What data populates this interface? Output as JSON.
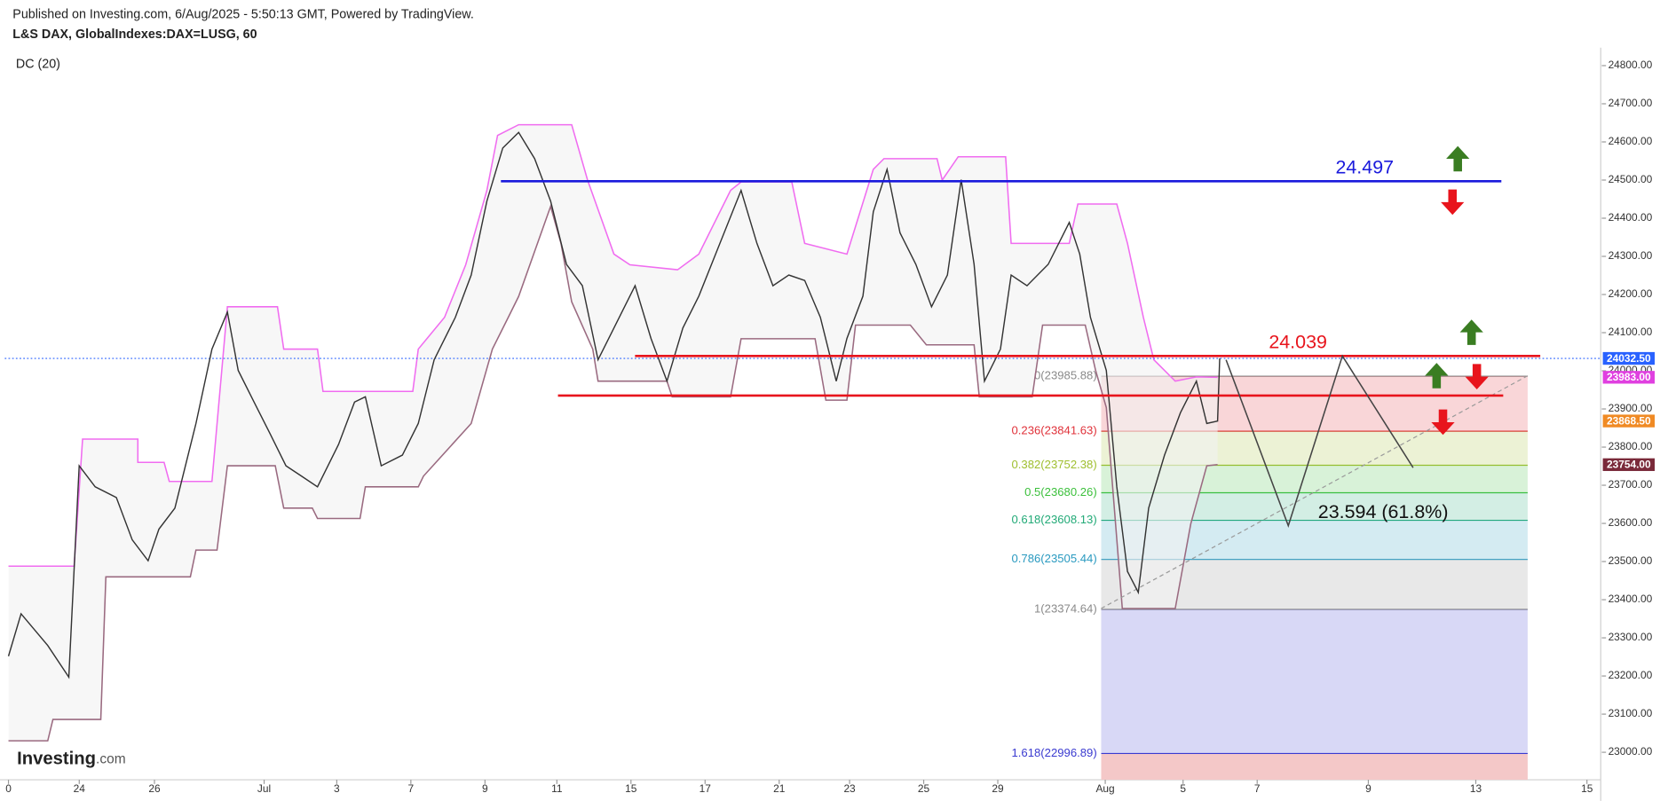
{
  "header": {
    "published": "Published on Investing.com, 6/Aug/2025 - 5:50:13 GMT, Powered by TradingView.",
    "symbol": "L&S DAX, GlobalIndexes:DAX=LUSG, 60",
    "indicator": "DC (20)",
    "logo": "Investing",
    "logo_suffix": ".com"
  },
  "chart_data": {
    "type": "line",
    "xlim": [
      -0.1,
      43
    ],
    "ylim": [
      22928,
      24847
    ],
    "xticks": [
      0,
      {
        "value": 1.91,
        "label": "24"
      },
      {
        "value": 3.94,
        "label": "26"
      },
      {
        "value": 6.9,
        "label": "Jul"
      },
      {
        "value": 8.86,
        "label": "3"
      },
      {
        "value": 10.86,
        "label": "7"
      },
      {
        "value": 12.86,
        "label": "9"
      },
      {
        "value": 14.8,
        "label": "11"
      },
      {
        "value": 16.8,
        "label": "15"
      },
      {
        "value": 18.8,
        "label": "17"
      },
      {
        "value": 20.8,
        "label": "21"
      },
      {
        "value": 22.7,
        "label": "23"
      },
      {
        "value": 24.7,
        "label": "25"
      },
      {
        "value": 26.7,
        "label": "29"
      },
      {
        "value": 29.6,
        "label": "Aug"
      },
      {
        "value": 31.7,
        "label": "5"
      },
      {
        "value": 33.7,
        "label": "7"
      },
      {
        "value": 36.7,
        "label": "9"
      },
      {
        "value": 39.6,
        "label": "13"
      },
      {
        "value": 42.6,
        "label": "15"
      }
    ],
    "yticks": [
      {
        "value": 23000,
        "label": "23000.00"
      },
      {
        "value": 23100,
        "label": "23100.00"
      },
      {
        "value": 23200,
        "label": "23200.00"
      },
      {
        "value": 23300,
        "label": "23300.00"
      },
      {
        "value": 23400,
        "label": "23400.00"
      },
      {
        "value": 23500,
        "label": "23500.00"
      },
      {
        "value": 23600,
        "label": "23600.00"
      },
      {
        "value": 23700,
        "label": "23700.00"
      },
      {
        "value": 23800,
        "label": "23800.00"
      },
      {
        "value": 23900,
        "label": "23900.00"
      },
      {
        "value": 24000,
        "label": "24000.00"
      },
      {
        "value": 24100,
        "label": "24100.00"
      },
      {
        "value": 24200,
        "label": "24200.00"
      },
      {
        "value": 24300,
        "label": "24300.00"
      },
      {
        "value": 24400,
        "label": "24400.00"
      },
      {
        "value": 24500,
        "label": "24500.00"
      },
      {
        "value": 24600,
        "label": "24600.00"
      },
      {
        "value": 24700,
        "label": "24700.00"
      },
      {
        "value": 24800,
        "label": "24800.00"
      }
    ],
    "price": {
      "color": "#333333",
      "x": [
        0,
        0.34,
        1.06,
        1.63,
        1.91,
        2.34,
        2.91,
        3.34,
        3.77,
        4.06,
        4.49,
        5.06,
        5.49,
        5.91,
        6.2,
        6.63,
        7.06,
        7.49,
        7.91,
        8.34,
        8.91,
        9.34,
        9.63,
        10.06,
        10.63,
        11.06,
        11.49,
        12.06,
        12.49,
        12.91,
        13.34,
        13.77,
        14.2,
        14.63,
        15.06,
        15.49,
        15.91,
        16.34,
        16.91,
        17.34,
        17.77,
        18.2,
        18.63,
        19.2,
        19.77,
        20.2,
        20.63,
        21.06,
        21.49,
        21.91,
        22.34,
        22.63,
        23.06,
        23.34,
        23.71,
        24.06,
        24.49,
        24.91,
        25.34,
        25.71,
        26.06,
        26.34,
        26.77,
        27.06,
        27.49,
        28.06,
        28.63,
        28.91,
        29.2,
        29.63,
        29.91,
        30.2,
        30.49,
        30.77,
        31.2,
        31.63,
        32.06,
        32.34,
        32.63,
        32.69
      ],
      "values": [
        23252,
        23363,
        23280,
        23197,
        23751,
        23696,
        23668,
        23557,
        23502,
        23585,
        23640,
        23862,
        24057,
        24154,
        24001,
        23918,
        23835,
        23751,
        23724,
        23696,
        23807,
        23918,
        23932,
        23751,
        23779,
        23862,
        24029,
        24140,
        24251,
        24445,
        24584,
        24625,
        24556,
        24445,
        24279,
        24223,
        24029,
        24112,
        24223,
        24085,
        23973,
        24112,
        24196,
        24334,
        24473,
        24334,
        24223,
        24251,
        24237,
        24140,
        23973,
        24085,
        24196,
        24417,
        24528,
        24362,
        24279,
        24168,
        24251,
        24501,
        24279,
        23973,
        24057,
        24251,
        24223,
        24279,
        24389,
        24306,
        24140,
        24001,
        23696,
        23474,
        23419,
        23640,
        23779,
        23890,
        23973,
        23862,
        23868.5,
        24032.5
      ]
    },
    "dc_upper": {
      "color": "#f06cf0",
      "x": [
        0,
        1.77,
        2,
        3.49,
        3.49,
        4.2,
        4.34,
        5.49,
        5.91,
        7.26,
        7.43,
        8.34,
        8.49,
        10.91,
        11.06,
        11.77,
        12.34,
        12.91,
        13.2,
        13.77,
        15.2,
        15.63,
        16.34,
        16.77,
        18.06,
        18.63,
        19.49,
        19.77,
        21.14,
        21.49,
        22.63,
        23.34,
        23.63,
        25.06,
        25.2,
        25.63,
        26.91,
        27.06,
        28.63,
        28.86,
        29.91,
        30.2,
        30.63,
        30.91,
        31.49,
        32.06,
        32.63
      ],
      "values": [
        23488,
        23488,
        23821,
        23821,
        23760,
        23760,
        23710,
        23710,
        24168,
        24168,
        24057,
        24057,
        23946,
        23946,
        24057,
        24140,
        24278,
        24473,
        24617,
        24645,
        24645,
        24500,
        24306,
        24278,
        24265,
        24306,
        24473,
        24495,
        24495,
        24334,
        24306,
        24528,
        24556,
        24556,
        24500,
        24561,
        24561,
        24334,
        24334,
        24437,
        24437,
        24334,
        24140,
        24029,
        23973,
        23984,
        23983
      ]
    },
    "dc_lower": {
      "color": "#9a6a80",
      "x": [
        0,
        1.06,
        1.2,
        2.49,
        2.63,
        4.91,
        5.06,
        5.63,
        5.91,
        7.2,
        7.43,
        8.2,
        8.34,
        9.49,
        9.63,
        11.06,
        11.2,
        12.49,
        13.06,
        13.49,
        13.77,
        14.63,
        14.91,
        15.2,
        15.77,
        15.91,
        17.77,
        17.91,
        19.49,
        19.77,
        21.77,
        22.06,
        22.63,
        22.86,
        24.34,
        24.77,
        26.06,
        26.2,
        27.63,
        27.91,
        29.06,
        29.34,
        29.63,
        30.06,
        31.49,
        31.91,
        32.34,
        32.63
      ],
      "values": [
        23030,
        23030,
        23086,
        23086,
        23460,
        23460,
        23530,
        23530,
        23751,
        23751,
        23640,
        23640,
        23613,
        23613,
        23696,
        23696,
        23724,
        23862,
        24057,
        24140,
        24195,
        24431,
        24334,
        24181,
        24057,
        23973,
        23973,
        23932,
        23932,
        24084,
        24084,
        23923,
        23923,
        24120,
        24120,
        24068,
        24068,
        23932,
        23932,
        24120,
        24120,
        24001,
        23904,
        23377,
        23377,
        23599,
        23751,
        23754
      ]
    },
    "last_price_line": {
      "value": 24032.5,
      "color": "#2962ff"
    },
    "hlines": [
      {
        "value": 24497,
        "color": "#1a1adc",
        "x": [
          13.29,
          40.29
        ]
      },
      {
        "value": 24039,
        "color": "#e8141c",
        "x": [
          16.91,
          41.34
        ]
      },
      {
        "value": 23935,
        "color": "#e8141c",
        "x": [
          14.83,
          40.34
        ]
      }
    ],
    "fib": {
      "x": [
        29.49,
        41
      ],
      "tail_color": "#f4c8c8",
      "levels": [
        {
          "price": 23985.88,
          "label": "0(23985.88)",
          "color": "#8a8a8a"
        },
        {
          "price": 23841.63,
          "label": "0.236(23841.63)",
          "color": "#e0323a"
        },
        {
          "price": 23752.38,
          "label": "0.382(23752.38)",
          "color": "#9fbf2f"
        },
        {
          "price": 23680.26,
          "label": "0.5(23680.26)",
          "color": "#3cc03c"
        },
        {
          "price": 23608.13,
          "label": "0.618(23608.13)",
          "color": "#22aa77"
        },
        {
          "price": 23505.44,
          "label": "0.786(23505.44)",
          "color": "#2a9ac0"
        },
        {
          "price": 23374.64,
          "label": "1(23374.64)",
          "color": "#8a8a8a"
        },
        {
          "price": 22996.89,
          "label": "1.618(22996.89)",
          "color": "#3a3ad0"
        }
      ]
    },
    "trendline": {
      "x": [
        29.49,
        41
      ],
      "values": [
        23377,
        23987
      ],
      "color": "#9a9a9a"
    },
    "projection": {
      "x": [
        32.86,
        34.54,
        36,
        37.91
      ],
      "values": [
        24029,
        23594,
        24039,
        23746
      ],
      "color": "#444444"
    },
    "annotations": [
      {
        "text": "24.497",
        "x": 36.6,
        "y": 24497,
        "color": "#1a1adc"
      },
      {
        "text": "24.039",
        "x": 34.8,
        "y": 24039,
        "color": "#e8141c"
      },
      {
        "text": "23.594  (61.8%)",
        "x": 37.1,
        "y": 23594,
        "color": "#111111"
      }
    ],
    "price_labels": [
      {
        "value": 24032.5,
        "label": "24032.50",
        "color": "#2962ff"
      },
      {
        "value": 23983,
        "label": "23983.00",
        "color": "#e040e0"
      },
      {
        "value": 23868.5,
        "label": "23868.50",
        "color": "#f08a24"
      },
      {
        "value": 23754,
        "label": "23754.00",
        "color": "#7a2a3a"
      }
    ]
  }
}
